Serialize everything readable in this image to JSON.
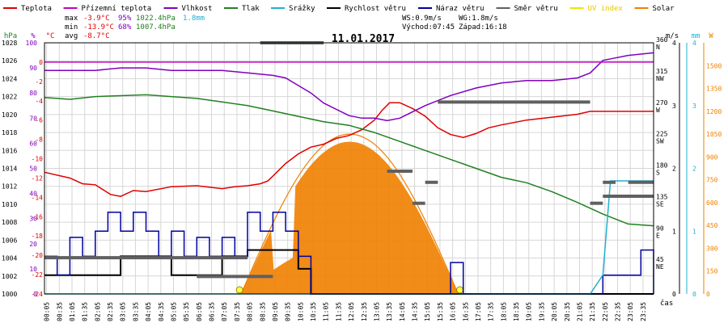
{
  "legend": [
    {
      "name": "Teplota",
      "color": "#e00000"
    },
    {
      "name": "Přízemní teplota",
      "color": "#c000c0"
    },
    {
      "name": "Vlhkost",
      "color": "#8000c0"
    },
    {
      "name": "Tlak",
      "color": "#208020"
    },
    {
      "name": "Srážky",
      "color": "#20b0d0"
    },
    {
      "name": "Rychlost větru",
      "color": "#000000"
    },
    {
      "name": "Náraz větru",
      "color": "#0000a0"
    },
    {
      "name": "Směr větru",
      "color": "#606060"
    },
    {
      "name": "UV index",
      "color": "#e8e800"
    },
    {
      "name": "Solar",
      "color": "#f08000"
    }
  ],
  "stats": {
    "max_label": "max",
    "max_temp": "-3.9°C",
    "max_hum": "95%",
    "max_press": "1022.4hPa",
    "max_rain": "1.8mm",
    "min_label": "min",
    "min_temp": "-13.9°C",
    "min_hum": "68%",
    "min_press": "1007.4hPa",
    "avg_label": "avg",
    "avg_temp": "-8.7°C",
    "ws": "WS:0.9m/s",
    "wg": "WG:1.8m/s",
    "sunrise": "Východ:07:45",
    "sunset": "Západ:16:18"
  },
  "date": "11.01.2017",
  "axis_titles": {
    "hpa": "hPa",
    "pct": "%",
    "degc": "°C",
    "ms": "m/s",
    "mm": "mm",
    "w": "W",
    "cas": "čas"
  },
  "colors": {
    "grid": "#d6d6d6",
    "frame": "#000000"
  },
  "chart_data": {
    "type": "line",
    "title": "11.01.2017",
    "x_ticks": [
      "00:05",
      "00:35",
      "01:05",
      "01:35",
      "02:05",
      "02:35",
      "03:05",
      "03:35",
      "04:05",
      "04:35",
      "05:05",
      "05:35",
      "06:05",
      "06:35",
      "07:05",
      "07:35",
      "08:05",
      "08:35",
      "09:05",
      "09:35",
      "10:05",
      "10:35",
      "11:05",
      "11:35",
      "12:05",
      "12:35",
      "13:05",
      "13:35",
      "14:05",
      "14:35",
      "15:05",
      "15:35",
      "16:05",
      "16:35",
      "17:05",
      "17:35",
      "18:05",
      "18:35",
      "19:05",
      "19:35",
      "20:05",
      "20:35",
      "21:05",
      "21:35",
      "22:05",
      "22:35",
      "23:05",
      "23:35"
    ],
    "axes": {
      "pressure": {
        "unit": "hPa",
        "min": 1000,
        "max": 1028,
        "ticks": [
          1000,
          1002,
          1004,
          1006,
          1008,
          1010,
          1012,
          1014,
          1016,
          1018,
          1020,
          1022,
          1024,
          1026,
          1028
        ]
      },
      "humidity": {
        "unit": "%",
        "min": 0,
        "max": 100,
        "ticks": [
          0,
          10,
          20,
          30,
          40,
          50,
          60,
          70,
          80,
          90,
          100
        ]
      },
      "temperature": {
        "unit": "°C",
        "min": -24,
        "max": 2,
        "ticks": [
          -24,
          -22,
          -20,
          -18,
          -16,
          -14,
          -12,
          -10,
          -8,
          -6,
          -4,
          -2,
          0
        ]
      },
      "wind_dir": {
        "unit": "",
        "min": 0,
        "max": 360,
        "ticks": [
          {
            "v": 45,
            "l": "45",
            "d": "NE"
          },
          {
            "v": 90,
            "l": "90",
            "d": "E"
          },
          {
            "v": 135,
            "l": "135",
            "d": "SE"
          },
          {
            "v": 180,
            "l": "180",
            "d": "S"
          },
          {
            "v": 225,
            "l": "225",
            "d": "SW"
          },
          {
            "v": 270,
            "l": "270",
            "d": "W"
          },
          {
            "v": 315,
            "l": "315",
            "d": "NW"
          },
          {
            "v": 360,
            "l": "360",
            "d": "N"
          }
        ]
      },
      "wind_speed": {
        "unit": "m/s",
        "min": 0,
        "max": 4,
        "ticks": [
          0,
          1,
          2,
          3,
          4
        ]
      },
      "rain": {
        "unit": "mm",
        "min": 0,
        "max": 4,
        "ticks": [
          0,
          1,
          2,
          3,
          4
        ]
      },
      "solar": {
        "unit": "W",
        "min": 0,
        "max": 1650,
        "ticks": [
          0,
          150,
          300,
          450,
          600,
          750,
          900,
          1050,
          1200,
          1350,
          1500
        ]
      }
    },
    "series": [
      {
        "name": "Teplota",
        "axis": "temperature",
        "color": "#e00000",
        "points": [
          [
            0,
            -11.4
          ],
          [
            1,
            -12
          ],
          [
            1.5,
            -12.6
          ],
          [
            2,
            -12.7
          ],
          [
            2.6,
            -13.7
          ],
          [
            3,
            -13.9
          ],
          [
            3.5,
            -13.3
          ],
          [
            4,
            -13.4
          ],
          [
            5,
            -12.9
          ],
          [
            6,
            -12.8
          ],
          [
            7,
            -13.1
          ],
          [
            7.5,
            -12.9
          ],
          [
            8,
            -12.8
          ],
          [
            8.5,
            -12.6
          ],
          [
            8.8,
            -12.3
          ],
          [
            9,
            -11.8
          ],
          [
            9.5,
            -10.5
          ],
          [
            10,
            -9.5
          ],
          [
            10.5,
            -8.8
          ],
          [
            11,
            -8.5
          ],
          [
            11.5,
            -7.9
          ],
          [
            12,
            -7.6
          ],
          [
            12.5,
            -7.0
          ],
          [
            13,
            -6.0
          ],
          [
            13.3,
            -5.0
          ],
          [
            13.6,
            -4.2
          ],
          [
            14,
            -4.2
          ],
          [
            14.5,
            -4.8
          ],
          [
            15,
            -5.6
          ],
          [
            15.5,
            -6.8
          ],
          [
            16,
            -7.5
          ],
          [
            16.5,
            -7.8
          ],
          [
            17,
            -7.4
          ],
          [
            17.5,
            -6.8
          ],
          [
            18,
            -6.5
          ],
          [
            19,
            -6.0
          ],
          [
            20,
            -5.7
          ],
          [
            21,
            -5.4
          ],
          [
            21.5,
            -5.1
          ],
          [
            22,
            -5.1
          ],
          [
            23,
            -5.1
          ],
          [
            24,
            -5.1
          ]
        ]
      },
      {
        "name": "Vlhkost",
        "axis": "humidity",
        "color": "#8000c0",
        "points": [
          [
            0,
            89
          ],
          [
            1,
            89
          ],
          [
            2,
            89
          ],
          [
            3,
            90
          ],
          [
            4,
            90
          ],
          [
            5,
            89
          ],
          [
            6,
            89
          ],
          [
            7,
            89
          ],
          [
            8,
            88
          ],
          [
            9,
            87
          ],
          [
            9.5,
            86
          ],
          [
            10,
            83
          ],
          [
            10.5,
            80
          ],
          [
            11,
            76
          ],
          [
            12,
            71
          ],
          [
            12.5,
            70
          ],
          [
            13,
            70
          ],
          [
            13.5,
            69
          ],
          [
            14,
            70
          ],
          [
            15,
            75
          ],
          [
            16,
            79
          ],
          [
            17,
            82
          ],
          [
            18,
            84
          ],
          [
            19,
            85
          ],
          [
            20,
            85
          ],
          [
            21,
            86
          ],
          [
            21.5,
            88
          ],
          [
            22,
            93
          ],
          [
            22.5,
            94
          ],
          [
            23,
            95
          ],
          [
            24,
            96
          ]
        ]
      },
      {
        "name": "Tlak",
        "axis": "pressure",
        "color": "#208020",
        "points": [
          [
            0,
            1021.9
          ],
          [
            1,
            1021.7
          ],
          [
            2,
            1022.0
          ],
          [
            3,
            1022.1
          ],
          [
            4,
            1022.2
          ],
          [
            5,
            1022.0
          ],
          [
            6,
            1021.8
          ],
          [
            7,
            1021.4
          ],
          [
            8,
            1021.0
          ],
          [
            9,
            1020.4
          ],
          [
            10,
            1019.8
          ],
          [
            11,
            1019.2
          ],
          [
            12,
            1018.8
          ],
          [
            13,
            1018.0
          ],
          [
            14,
            1017.0
          ],
          [
            15,
            1016.0
          ],
          [
            16,
            1015.0
          ],
          [
            17,
            1014.0
          ],
          [
            18,
            1013.0
          ],
          [
            19,
            1012.4
          ],
          [
            20,
            1011.4
          ],
          [
            21,
            1010.2
          ],
          [
            22,
            1008.9
          ],
          [
            23,
            1007.8
          ],
          [
            24,
            1007.6
          ]
        ]
      },
      {
        "name": "Přízemní teplota",
        "axis": "temperature",
        "color": "#c000c0",
        "points": [
          [
            0,
            0
          ],
          [
            24,
            0
          ]
        ]
      },
      {
        "name": "Rychlost větru",
        "axis": "wind_speed",
        "color": "#000000",
        "points": [
          [
            0,
            0.3
          ],
          [
            1,
            0.3
          ],
          [
            2,
            0.3
          ],
          [
            3,
            0.6
          ],
          [
            4,
            0.6
          ],
          [
            5,
            0.3
          ],
          [
            6,
            0.3
          ],
          [
            7,
            0.6
          ],
          [
            8,
            0.7
          ],
          [
            9,
            0.7
          ],
          [
            10,
            0.4
          ],
          [
            10.5,
            0
          ],
          [
            24,
            0
          ]
        ]
      },
      {
        "name": "Náraz větru",
        "axis": "wind_speed",
        "color": "#0000a0",
        "points": [
          [
            0,
            0.6
          ],
          [
            0.5,
            0.3
          ],
          [
            1,
            0.9
          ],
          [
            1.5,
            0.6
          ],
          [
            2,
            1.0
          ],
          [
            2.5,
            1.3
          ],
          [
            3,
            1.0
          ],
          [
            3.5,
            1.3
          ],
          [
            4,
            1.0
          ],
          [
            4.5,
            0.6
          ],
          [
            5,
            1.0
          ],
          [
            5.5,
            0.6
          ],
          [
            6,
            0.9
          ],
          [
            6.5,
            0.6
          ],
          [
            7,
            0.9
          ],
          [
            7.5,
            0.6
          ],
          [
            8,
            1.3
          ],
          [
            8.5,
            1.0
          ],
          [
            9,
            1.3
          ],
          [
            9.5,
            1.0
          ],
          [
            10,
            0.6
          ],
          [
            10.5,
            0
          ],
          [
            15.5,
            0
          ],
          [
            16,
            0.5
          ],
          [
            16.5,
            0
          ],
          [
            21.5,
            0
          ],
          [
            22,
            0.3
          ],
          [
            22.5,
            0.3
          ],
          [
            23,
            0.3
          ],
          [
            23.5,
            0.7
          ],
          [
            24,
            0
          ]
        ]
      },
      {
        "name": "Srážky",
        "axis": "rain",
        "color": "#20b0d0",
        "points": [
          [
            0,
            0
          ],
          [
            21.5,
            0
          ],
          [
            22,
            0.3
          ],
          [
            22.3,
            1.8
          ],
          [
            24,
            1.8
          ]
        ]
      },
      {
        "name": "Směr větru",
        "axis": "wind_dir",
        "color": "#606060",
        "type": "segments",
        "segments": [
          [
            0,
            8,
            52
          ],
          [
            6,
            9,
            25
          ],
          [
            8.5,
            11,
            360
          ],
          [
            13.5,
            14.5,
            176
          ],
          [
            14.5,
            15,
            130
          ],
          [
            15,
            15.5,
            160
          ],
          [
            15.5,
            21.5,
            275
          ],
          [
            21.5,
            22,
            130
          ],
          [
            22,
            24,
            140
          ],
          [
            22,
            22.5,
            160
          ],
          [
            23,
            24,
            160
          ]
        ]
      }
    ],
    "solar": {
      "sunrise": 7.75,
      "sunset": 16.3,
      "peak": 1000,
      "clear_sky_peak": 1050
    }
  }
}
